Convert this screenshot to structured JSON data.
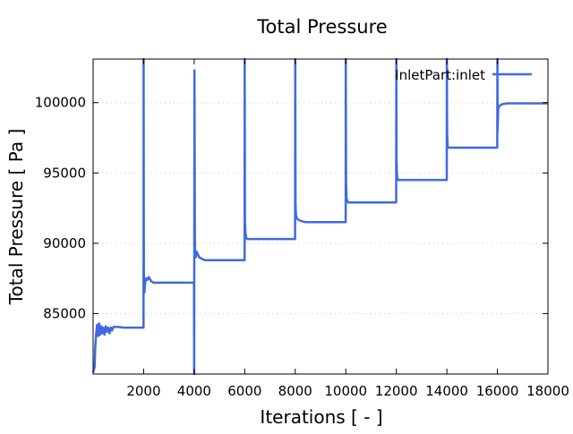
{
  "chart_data": {
    "type": "line",
    "title": "Total Pressure",
    "xlabel": "Iterations [ - ]",
    "ylabel": "Total Pressure [ Pa ]",
    "xlim": [
      0,
      18000
    ],
    "ylim": [
      80700,
      103100
    ],
    "x_ticks": [
      2000,
      4000,
      6000,
      8000,
      10000,
      12000,
      14000,
      16000,
      18000
    ],
    "x_tick_labels": [
      "2000",
      "4000",
      "6000",
      "8000",
      "10000",
      "12000",
      "14000",
      "16000",
      "18000"
    ],
    "y_ticks": [
      85000,
      90000,
      95000,
      100000
    ],
    "y_tick_labels": [
      "85000",
      "90000",
      "95000",
      "100000"
    ],
    "grid": "horizontal-dotted",
    "legend_position": "top-right",
    "color": "#4169e1",
    "series": [
      {
        "name": "InletPart:inlet",
        "x": [
          0,
          60,
          80,
          120,
          160,
          200,
          240,
          280,
          320,
          360,
          400,
          450,
          500,
          550,
          600,
          650,
          700,
          750,
          800,
          900,
          1000,
          1200,
          1400,
          1600,
          1800,
          1995,
          2000,
          2010,
          2030,
          2060,
          2100,
          2150,
          2200,
          2300,
          2400,
          2500,
          2600,
          2800,
          3000,
          3200,
          3400,
          3600,
          3800,
          3995,
          4000,
          4010,
          4030,
          4060,
          4100,
          4150,
          4200,
          4300,
          4400,
          4500,
          4700,
          5000,
          5400,
          5800,
          5995,
          6000,
          6010,
          6030,
          6060,
          6100,
          6200,
          6400,
          6800,
          7200,
          7600,
          7995,
          8000,
          8010,
          8030,
          8060,
          8100,
          8200,
          8400,
          8800,
          9200,
          9600,
          9995,
          10000,
          10010,
          10030,
          10060,
          10100,
          10200,
          10400,
          10800,
          11200,
          11600,
          11995,
          12000,
          12010,
          12030,
          12060,
          12100,
          12200,
          12400,
          12800,
          13200,
          13600,
          13995,
          14000,
          14010,
          14030,
          14060,
          14100,
          14200,
          14400,
          14800,
          15200,
          15600,
          15995,
          16000,
          16010,
          16030,
          16060,
          16100,
          16200,
          16400,
          16800,
          17200,
          17600,
          18000
        ],
        "y": [
          80800,
          81200,
          82500,
          83600,
          84200,
          83400,
          84300,
          83500,
          84100,
          83600,
          84000,
          83500,
          84100,
          83700,
          84000,
          83600,
          84000,
          83800,
          84050,
          84050,
          84050,
          84000,
          84000,
          84000,
          84000,
          84000,
          103100,
          88000,
          86500,
          87200,
          87500,
          87400,
          87600,
          87300,
          87200,
          87200,
          87200,
          87200,
          87200,
          87200,
          87200,
          87200,
          87200,
          87200,
          80700,
          102300,
          89600,
          89000,
          89400,
          89200,
          89000,
          88900,
          88800,
          88800,
          88800,
          88800,
          88800,
          88800,
          88800,
          103100,
          91500,
          90700,
          90400,
          90300,
          90300,
          90300,
          90300,
          90300,
          90300,
          90300,
          103100,
          92800,
          92000,
          91800,
          91700,
          91600,
          91500,
          91500,
          91500,
          91500,
          91500,
          103100,
          94500,
          93200,
          93000,
          92900,
          92900,
          92900,
          92900,
          92900,
          92900,
          92900,
          103100,
          95800,
          94700,
          94500,
          94500,
          94500,
          94500,
          94500,
          94500,
          94500,
          94500,
          103100,
          97800,
          96900,
          96800,
          96800,
          96800,
          96800,
          96800,
          96800,
          96800,
          96800,
          103100,
          98000,
          99500,
          99700,
          99800,
          99900,
          99950,
          99950,
          99950,
          99950,
          99950
        ]
      }
    ]
  }
}
